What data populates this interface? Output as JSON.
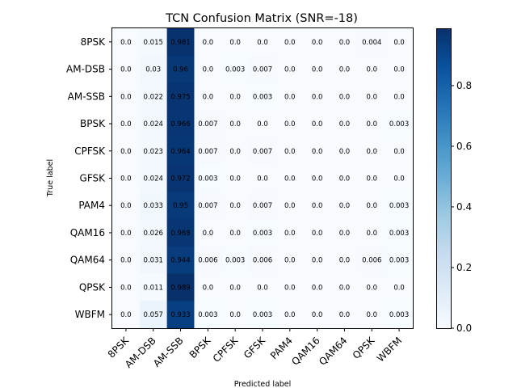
{
  "chart_data": {
    "type": "heatmap",
    "title": "TCN Confusion Matrix (SNR=-18)",
    "xlabel": "Predicted label",
    "ylabel": "True label",
    "row_labels": [
      "8PSK",
      "AM-DSB",
      "AM-SSB",
      "BPSK",
      "CPFSK",
      "GFSK",
      "PAM4",
      "QAM16",
      "QAM64",
      "QPSK",
      "WBFM"
    ],
    "col_labels": [
      "8PSK",
      "AM-DSB",
      "AM-SSB",
      "BPSK",
      "CPFSK",
      "GFSK",
      "PAM4",
      "QAM16",
      "QAM64",
      "QPSK",
      "WBFM"
    ],
    "values": [
      [
        0.0,
        0.015,
        0.981,
        0.0,
        0.0,
        0.0,
        0.0,
        0.0,
        0.0,
        0.004,
        0.0
      ],
      [
        0.0,
        0.03,
        0.96,
        0.0,
        0.003,
        0.007,
        0.0,
        0.0,
        0.0,
        0.0,
        0.0
      ],
      [
        0.0,
        0.022,
        0.975,
        0.0,
        0.0,
        0.003,
        0.0,
        0.0,
        0.0,
        0.0,
        0.0
      ],
      [
        0.0,
        0.024,
        0.966,
        0.007,
        0.0,
        0.0,
        0.0,
        0.0,
        0.0,
        0.0,
        0.003
      ],
      [
        0.0,
        0.023,
        0.964,
        0.007,
        0.0,
        0.007,
        0.0,
        0.0,
        0.0,
        0.0,
        0.0
      ],
      [
        0.0,
        0.024,
        0.972,
        0.003,
        0.0,
        0.0,
        0.0,
        0.0,
        0.0,
        0.0,
        0.0
      ],
      [
        0.0,
        0.033,
        0.95,
        0.007,
        0.0,
        0.007,
        0.0,
        0.0,
        0.0,
        0.0,
        0.003
      ],
      [
        0.0,
        0.026,
        0.968,
        0.0,
        0.0,
        0.003,
        0.0,
        0.0,
        0.0,
        0.0,
        0.003
      ],
      [
        0.0,
        0.031,
        0.944,
        0.006,
        0.003,
        0.006,
        0.0,
        0.0,
        0.0,
        0.006,
        0.003
      ],
      [
        0.0,
        0.011,
        0.989,
        0.0,
        0.0,
        0.0,
        0.0,
        0.0,
        0.0,
        0.0,
        0.0
      ],
      [
        0.0,
        0.057,
        0.933,
        0.003,
        0.0,
        0.003,
        0.0,
        0.0,
        0.0,
        0.0,
        0.003
      ]
    ],
    "colormap": "Blues",
    "colorbar": {
      "range": [
        0.0,
        0.989
      ],
      "ticks": [
        0.0,
        0.2,
        0.4,
        0.6,
        0.8
      ],
      "tick_labels": [
        "0.0",
        "0.2",
        "0.4",
        "0.6",
        "0.8"
      ]
    },
    "grid": false
  }
}
